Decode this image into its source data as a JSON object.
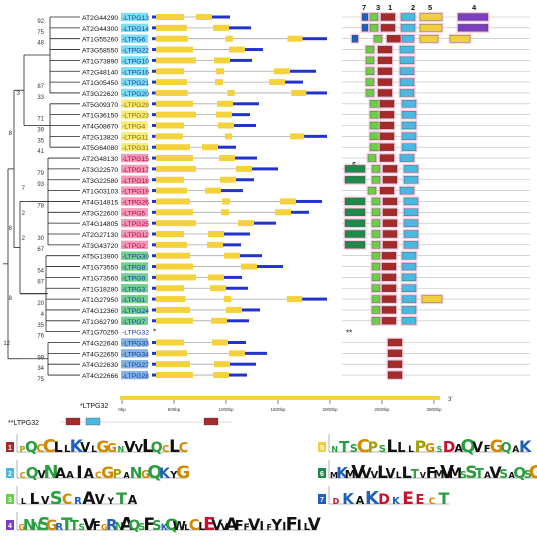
{
  "figure": {
    "genes": [
      {
        "id": "AT2G44290",
        "ltp": "LTPG13",
        "bs": "92",
        "hl": "cyan",
        "introns": 1
      },
      {
        "id": "AT2G44300",
        "ltp": "LTPG14",
        "bs": "75",
        "hl": "cyan",
        "introns": 1
      },
      {
        "id": "AT1G55260",
        "ltp": "LTPG6",
        "bs": "48",
        "hl": "cyan",
        "introns": 2
      },
      {
        "id": "AT3G58550",
        "ltp": "LTPG22",
        "bs": "",
        "hl": "cyan",
        "introns": 1
      },
      {
        "id": "AT1G73890",
        "ltp": "LTPG10",
        "bs": "",
        "hl": "cyan",
        "introns": 1
      },
      {
        "id": "AT2G48140",
        "ltp": "LTPG16",
        "bs": "",
        "hl": "cyan",
        "introns": 2
      },
      {
        "id": "AT1G05450",
        "ltp": "LTPG21",
        "bs": "87",
        "hl": "cyan",
        "introns": 2
      },
      {
        "id": "AT3G22620",
        "ltp": "LTPG20",
        "bs": "33",
        "hl": "cyan",
        "introns": 2
      },
      {
        "id": "AT5G09370",
        "ltp": "LTPG29",
        "bs": "",
        "hl": "yellow",
        "introns": 1
      },
      {
        "id": "AT1G36150",
        "ltp": "LTPG23",
        "bs": "71",
        "hl": "yellow",
        "introns": 1
      },
      {
        "id": "AT4G08670",
        "ltp": "LTPG4",
        "bs": "39",
        "hl": "yellow",
        "introns": 1
      },
      {
        "id": "AT2G13820",
        "ltp": "LTPG11",
        "bs": "35",
        "hl": "yellow",
        "introns": 2
      },
      {
        "id": "AT5G64080",
        "ltp": "LTPG31",
        "bs": "41",
        "hl": "yellow",
        "introns": 1
      },
      {
        "id": "AT2G48130",
        "ltp": "LTPG15",
        "bs": "",
        "hl": "pink",
        "introns": 1
      },
      {
        "id": "AT3G22570",
        "ltp": "LTPG17",
        "bs": "79",
        "hl": "pink",
        "introns": 1
      },
      {
        "id": "AT3G22580",
        "ltp": "LTPG18",
        "bs": "93",
        "hl": "pink",
        "introns": 1
      },
      {
        "id": "AT1G03103",
        "ltp": "LTPG19",
        "bs": "",
        "hl": "pink",
        "introns": 1
      },
      {
        "id": "AT4G14815",
        "ltp": "LTPG26",
        "bs": "78",
        "hl": "pink",
        "introns": 2
      },
      {
        "id": "AT3G22600",
        "ltp": "LTPG5",
        "bs": "",
        "hl": "pink",
        "introns": 2
      },
      {
        "id": "AT4G14805",
        "ltp": "LTPG25",
        "bs": "",
        "hl": "pink",
        "introns": 1
      },
      {
        "id": "AT2G27130",
        "ltp": "LTPG12",
        "bs": "30",
        "hl": "pink",
        "introns": 1
      },
      {
        "id": "AT3G43720",
        "ltp": "LTPG2",
        "bs": "67",
        "hl": "pink",
        "introns": 1
      },
      {
        "id": "AT5G13900",
        "ltp": "LTPG30",
        "bs": "",
        "hl": "green",
        "introns": 1
      },
      {
        "id": "AT1G73550",
        "ltp": "LTPG8",
        "bs": "54",
        "hl": "green",
        "introns": 1
      },
      {
        "id": "AT1G73560",
        "ltp": "LTPG9",
        "bs": "87",
        "hl": "green",
        "introns": 1
      },
      {
        "id": "AT1G18280",
        "ltp": "LTPG3",
        "bs": "",
        "hl": "green",
        "introns": 1
      },
      {
        "id": "AT1G27950",
        "ltp": "LTPG1",
        "bs": "20",
        "hl": "green",
        "introns": 2
      },
      {
        "id": "AT4G12360",
        "ltp": "LTPG24",
        "bs": "4",
        "hl": "green",
        "introns": 1
      },
      {
        "id": "AT1G62790",
        "ltp": "LTPG7",
        "bs": "35",
        "hl": "green",
        "introns": 1
      },
      {
        "id": "AT1G70250",
        "ltp": "LTPG32",
        "bs": "76",
        "hl": "none",
        "introns": 0
      },
      {
        "id": "AT4G22640",
        "ltp": "LTPG33",
        "bs": "",
        "hl": "blue",
        "introns": 1
      },
      {
        "id": "AT4G22650",
        "ltp": "LTPG34",
        "bs": "99",
        "hl": "blue",
        "introns": 1
      },
      {
        "id": "AT4G22630",
        "ltp": "LTPG27",
        "bs": "34",
        "hl": "blue",
        "introns": 1
      },
      {
        "id": "AT4G22666",
        "ltp": "LTPG28",
        "bs": "75",
        "hl": "blue",
        "introns": 1
      }
    ],
    "internal_bootstrap": [
      "3",
      "8",
      "8",
      "7",
      "2",
      "2",
      "8",
      "12"
    ],
    "motif_numbers": [
      "7",
      "3",
      "1",
      "2",
      "5",
      "4",
      "6"
    ],
    "asterisk": "*",
    "double_asterisk": "**",
    "scale_note": "*LTPG32",
    "scale_ticks": [
      "0bp",
      "500bp",
      "1000bp",
      "1500bp",
      "2000bp",
      "2500bp",
      "3000bp"
    ],
    "scale_end": "3'",
    "ltpg32_motif_label": "**LTPG32",
    "logos": [
      {
        "num": "1",
        "seq": "PQCCLLKVLGGNVVLQCLC",
        "color": "#a52a2a"
      },
      {
        "num": "2",
        "seq": "CQVNAAIACGPANGQKYG",
        "color": "#4bb8e0"
      },
      {
        "num": "3",
        "seq": "LLVSCRAVYTA",
        "color": "#6ccd47"
      },
      {
        "num": "4",
        "seq": "GNNSGRTTSVFGRNAQSFSKQWLCLEVVAFFVIFYIFILV",
        "color": "#7b3fbf"
      },
      {
        "num": "5",
        "seq": "NTSCPSLLLPGSDAQVFGQAK",
        "color": "#f0d040"
      },
      {
        "num": "6",
        "seq": "MKMVVVLVLLTVFMVMSSTAVSAQSG",
        "color": "#1e8a4a"
      },
      {
        "num": "7",
        "seq": "DKAKDKEECT",
        "color": "#1f5fbf"
      }
    ],
    "colors": {
      "exon": "#f3d23c",
      "utr": "#2233cc",
      "intron": "#aaaaaa",
      "hl_cyan": "#4fd6f0",
      "hl_yellow": "#f7e64a",
      "hl_pink": "#f27aa0",
      "hl_green": "#43c26a",
      "hl_blue": "#5b9bd8"
    }
  }
}
